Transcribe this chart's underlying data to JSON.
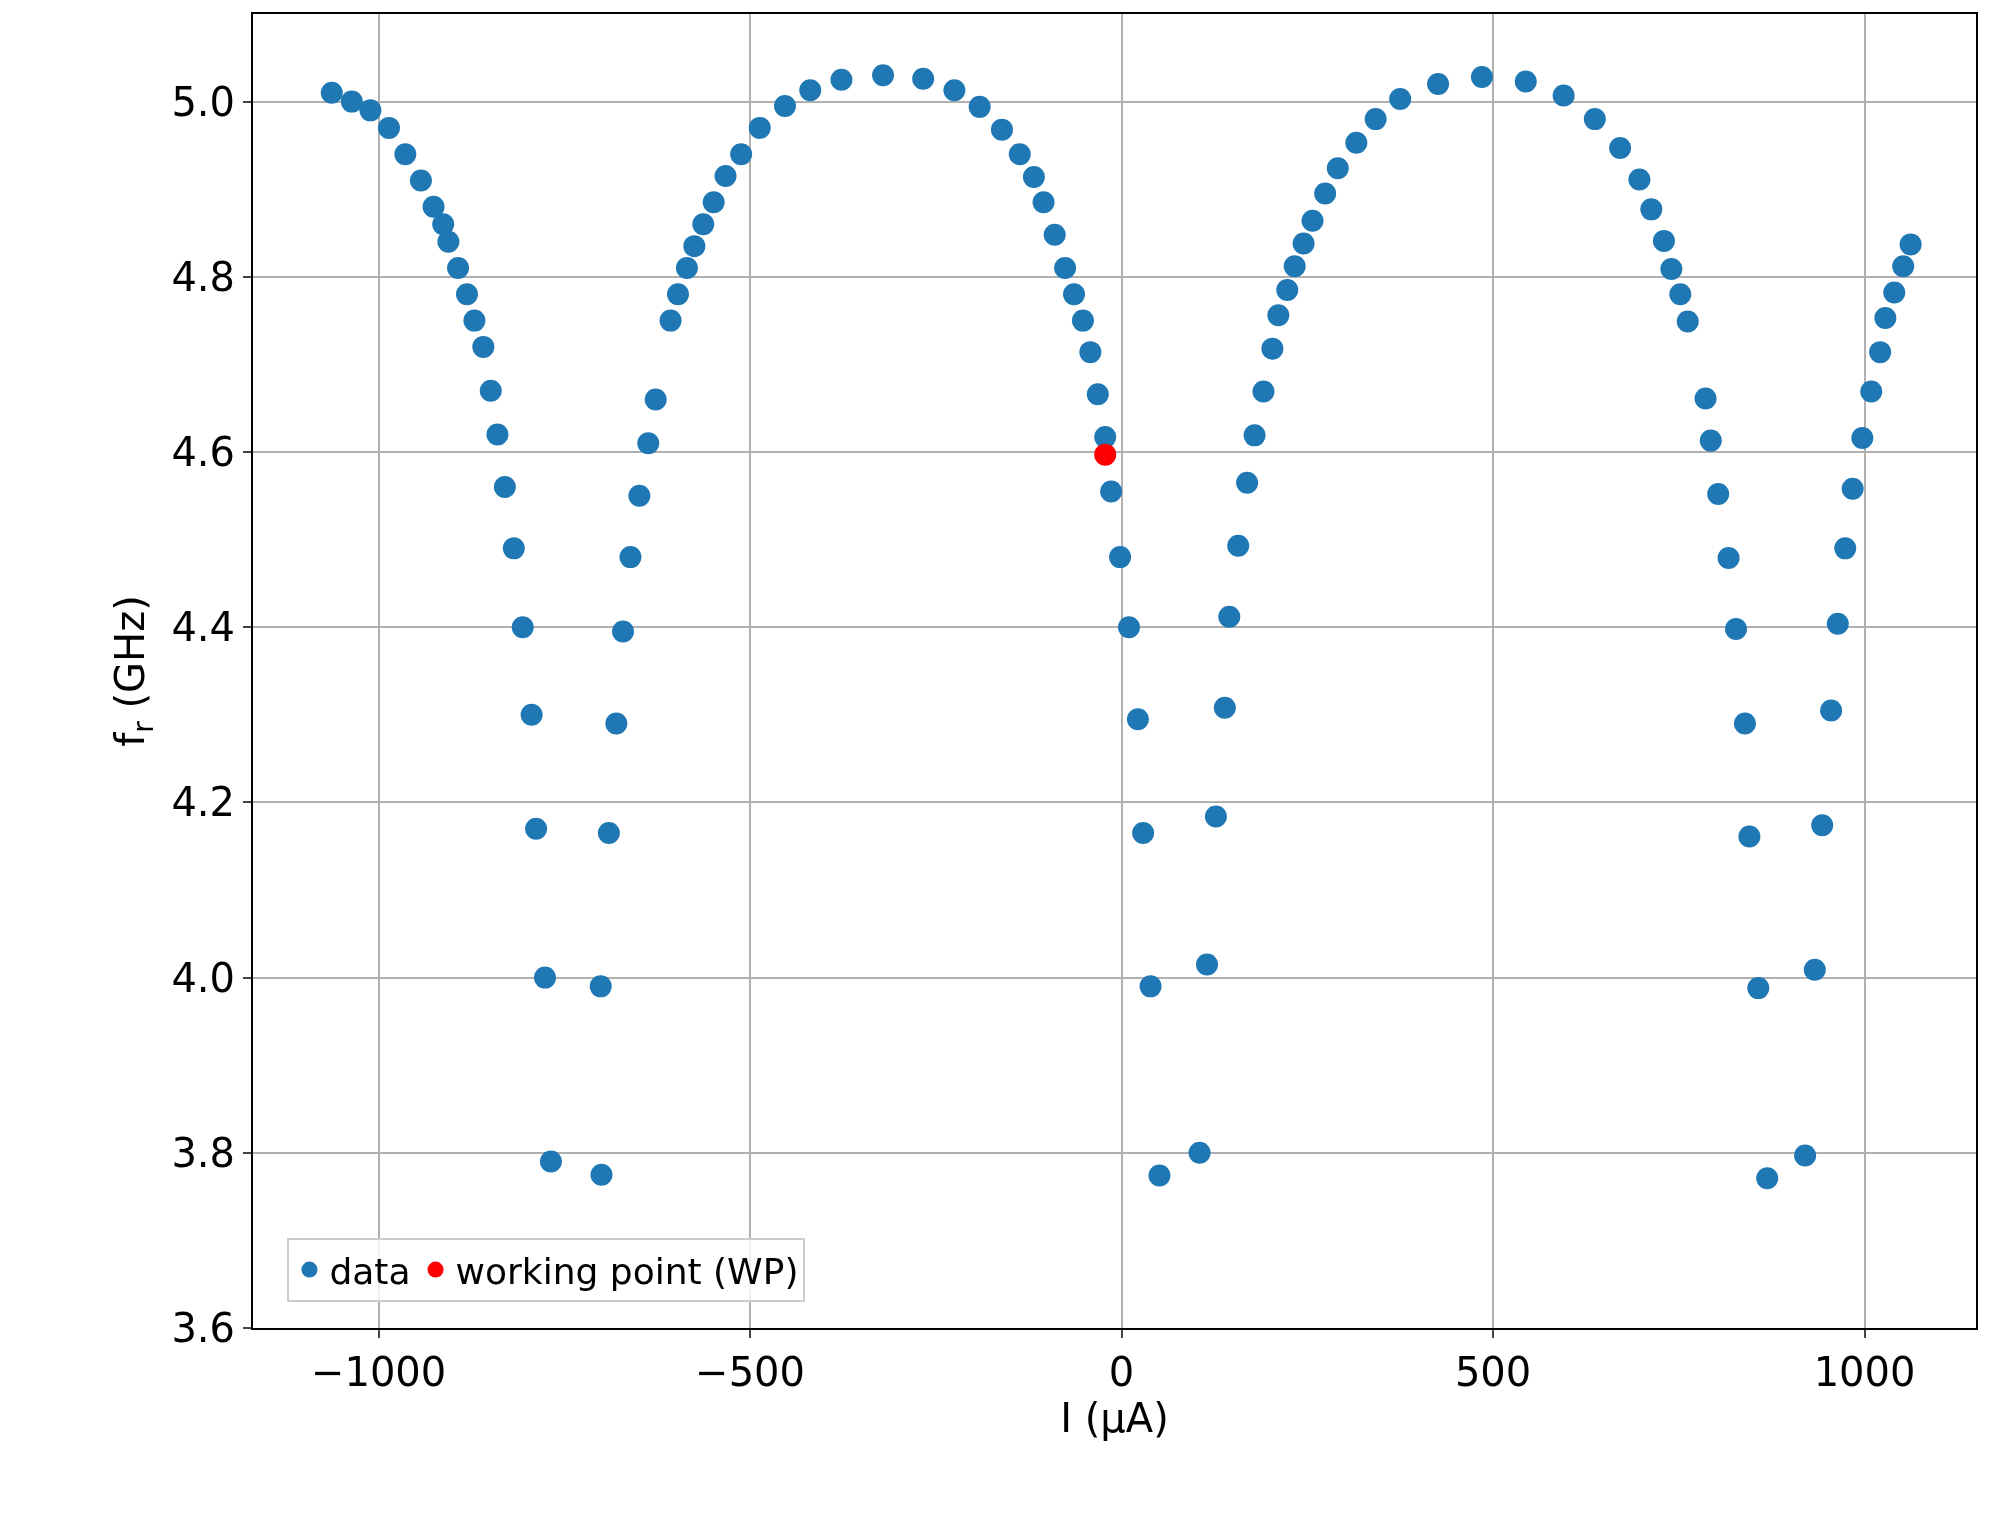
{
  "chart_data": {
    "type": "scatter",
    "xlabel": "I (μA)",
    "ylabel": "f$_{r}$ (GHz)",
    "xlim": [
      -1169,
      1150
    ],
    "ylim": [
      3.6,
      5.1
    ],
    "xticks": [
      -1000,
      -500,
      0,
      500,
      1000
    ],
    "yticks": [
      3.6,
      3.8,
      {
        "value": 4.0,
        "label": "4.0"
      },
      4.2,
      4.4,
      4.6,
      4.8,
      {
        "value": 5.0,
        "label": "5.0"
      }
    ],
    "grid": true,
    "legend": "bottom left",
    "marker": "circle",
    "series": [
      {
        "name": "data",
        "color": "#1f77b4",
        "x": [
          -1063,
          -1036,
          -1011,
          -986,
          -964,
          -943,
          -926,
          -913,
          -906,
          -893,
          -881,
          -871,
          -859,
          -849,
          -840,
          -830,
          -818,
          -806,
          -794,
          -788,
          -776,
          -768,
          -700,
          -701,
          -690,
          -680,
          -671,
          -661,
          -649,
          -637,
          -627,
          -607,
          -597,
          -585,
          -575,
          -563,
          -549,
          -533,
          -512,
          -487,
          -453,
          -419,
          -377,
          -321,
          -267,
          -225,
          -191,
          -161,
          -137,
          -118,
          -105,
          -90,
          -76,
          -64,
          -52,
          -42,
          -32,
          -22,
          -14,
          -2,
          10,
          22,
          29,
          39,
          51,
          105,
          115,
          127,
          139,
          145,
          157,
          169,
          179,
          191,
          203,
          211,
          223,
          233,
          245,
          257,
          274,
          291,
          316,
          342,
          375,
          426,
          485,
          544,
          595,
          637,
          671,
          697,
          713,
          730,
          740,
          752,
          762,
          786,
          793,
          803,
          817,
          827,
          839,
          845,
          857,
          869,
          920,
          933,
          943,
          955,
          964,
          974,
          984,
          997,
          1009,
          1021,
          1028,
          1040,
          1052,
          1062
        ],
        "values": [
          5.01,
          5.0,
          4.99,
          4.97,
          4.94,
          4.91,
          4.88,
          4.86,
          4.84,
          4.81,
          4.78,
          4.75,
          4.72,
          4.67,
          4.62,
          4.56,
          4.49,
          4.4,
          4.3,
          4.17,
          4.0,
          3.79,
          3.775,
          3.99,
          4.165,
          4.29,
          4.395,
          4.48,
          4.55,
          4.61,
          4.66,
          4.75,
          4.78,
          4.81,
          4.835,
          4.86,
          4.885,
          4.915,
          4.94,
          4.97,
          4.995,
          5.013,
          5.025,
          5.03,
          5.026,
          5.013,
          4.994,
          4.968,
          4.94,
          4.914,
          4.885,
          4.848,
          4.81,
          4.78,
          4.75,
          4.714,
          4.666,
          4.617,
          4.555,
          4.48,
          4.4,
          4.295,
          4.165,
          3.99,
          3.774,
          3.8,
          4.015,
          4.184,
          4.308,
          4.412,
          4.493,
          4.565,
          4.619,
          4.669,
          4.718,
          4.756,
          4.785,
          4.812,
          4.838,
          4.864,
          4.895,
          4.924,
          4.953,
          4.98,
          5.003,
          5.02,
          5.028,
          5.023,
          5.007,
          4.98,
          4.947,
          4.911,
          4.877,
          4.841,
          4.809,
          4.78,
          4.749,
          4.661,
          4.613,
          4.552,
          4.479,
          4.398,
          4.29,
          4.161,
          3.988,
          3.771,
          3.797,
          4.009,
          4.174,
          4.305,
          4.404,
          4.49,
          4.558,
          4.616,
          4.669,
          4.714,
          4.753,
          4.782,
          4.812,
          4.837
        ]
      },
      {
        "name": "working point (WP)",
        "color": "#ff0000",
        "x": [
          -22
        ],
        "values": [
          4.597
        ]
      }
    ]
  }
}
